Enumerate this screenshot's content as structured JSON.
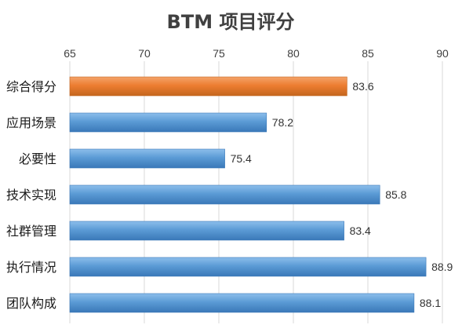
{
  "chart_data": {
    "type": "bar",
    "orientation": "horizontal",
    "title": "BTM 项目评分",
    "xlabel": "",
    "ylabel": "",
    "xlim": [
      65,
      90
    ],
    "x_ticks": [
      65,
      70,
      75,
      80,
      85,
      90
    ],
    "x_tick_labels": [
      "65",
      "70",
      "75",
      "80",
      "85",
      "90"
    ],
    "x_axis_position": "top",
    "grid": true,
    "legend": "none",
    "categories": [
      "综合得分",
      "应用场景",
      "必要性",
      "技术实现",
      "社群管理",
      "执行情况",
      "团队构成"
    ],
    "values": [
      83.6,
      78.2,
      75.4,
      85.8,
      83.4,
      88.9,
      88.1
    ],
    "value_labels": [
      "83.6",
      "78.2",
      "75.4",
      "85.8",
      "83.4",
      "88.9",
      "88.1"
    ],
    "highlight_index": 0,
    "colors": {
      "highlight": "#ED7D31",
      "default": "#5B9BD5",
      "highlight_light": "#F4A36A",
      "default_light": "#8DBEEB",
      "highlight_dark": "#C4661E",
      "default_dark": "#3A78B8",
      "grid": "#D9D9D9",
      "title": "#404040"
    }
  }
}
